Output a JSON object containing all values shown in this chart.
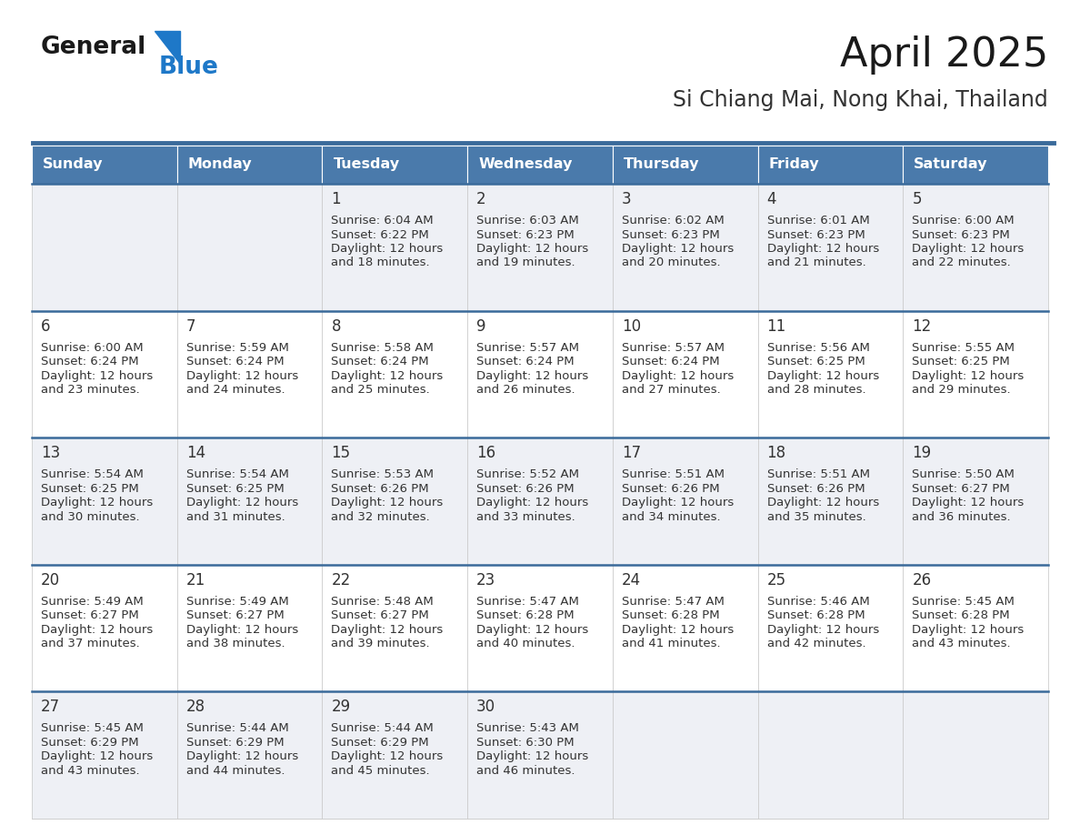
{
  "title": "April 2025",
  "subtitle": "Si Chiang Mai, Nong Khai, Thailand",
  "header_color": "#4a7aab",
  "header_text_color": "#ffffff",
  "row_odd_bg": "#eef0f5",
  "row_even_bg": "#ffffff",
  "text_color": "#333333",
  "border_color": "#3a6a9a",
  "cell_line_color": "#cccccc",
  "days_of_week": [
    "Sunday",
    "Monday",
    "Tuesday",
    "Wednesday",
    "Thursday",
    "Friday",
    "Saturday"
  ],
  "weeks": [
    [
      {
        "day": "",
        "lines": []
      },
      {
        "day": "",
        "lines": []
      },
      {
        "day": "1",
        "lines": [
          "Sunrise: 6:04 AM",
          "Sunset: 6:22 PM",
          "Daylight: 12 hours",
          "and 18 minutes."
        ]
      },
      {
        "day": "2",
        "lines": [
          "Sunrise: 6:03 AM",
          "Sunset: 6:23 PM",
          "Daylight: 12 hours",
          "and 19 minutes."
        ]
      },
      {
        "day": "3",
        "lines": [
          "Sunrise: 6:02 AM",
          "Sunset: 6:23 PM",
          "Daylight: 12 hours",
          "and 20 minutes."
        ]
      },
      {
        "day": "4",
        "lines": [
          "Sunrise: 6:01 AM",
          "Sunset: 6:23 PM",
          "Daylight: 12 hours",
          "and 21 minutes."
        ]
      },
      {
        "day": "5",
        "lines": [
          "Sunrise: 6:00 AM",
          "Sunset: 6:23 PM",
          "Daylight: 12 hours",
          "and 22 minutes."
        ]
      }
    ],
    [
      {
        "day": "6",
        "lines": [
          "Sunrise: 6:00 AM",
          "Sunset: 6:24 PM",
          "Daylight: 12 hours",
          "and 23 minutes."
        ]
      },
      {
        "day": "7",
        "lines": [
          "Sunrise: 5:59 AM",
          "Sunset: 6:24 PM",
          "Daylight: 12 hours",
          "and 24 minutes."
        ]
      },
      {
        "day": "8",
        "lines": [
          "Sunrise: 5:58 AM",
          "Sunset: 6:24 PM",
          "Daylight: 12 hours",
          "and 25 minutes."
        ]
      },
      {
        "day": "9",
        "lines": [
          "Sunrise: 5:57 AM",
          "Sunset: 6:24 PM",
          "Daylight: 12 hours",
          "and 26 minutes."
        ]
      },
      {
        "day": "10",
        "lines": [
          "Sunrise: 5:57 AM",
          "Sunset: 6:24 PM",
          "Daylight: 12 hours",
          "and 27 minutes."
        ]
      },
      {
        "day": "11",
        "lines": [
          "Sunrise: 5:56 AM",
          "Sunset: 6:25 PM",
          "Daylight: 12 hours",
          "and 28 minutes."
        ]
      },
      {
        "day": "12",
        "lines": [
          "Sunrise: 5:55 AM",
          "Sunset: 6:25 PM",
          "Daylight: 12 hours",
          "and 29 minutes."
        ]
      }
    ],
    [
      {
        "day": "13",
        "lines": [
          "Sunrise: 5:54 AM",
          "Sunset: 6:25 PM",
          "Daylight: 12 hours",
          "and 30 minutes."
        ]
      },
      {
        "day": "14",
        "lines": [
          "Sunrise: 5:54 AM",
          "Sunset: 6:25 PM",
          "Daylight: 12 hours",
          "and 31 minutes."
        ]
      },
      {
        "day": "15",
        "lines": [
          "Sunrise: 5:53 AM",
          "Sunset: 6:26 PM",
          "Daylight: 12 hours",
          "and 32 minutes."
        ]
      },
      {
        "day": "16",
        "lines": [
          "Sunrise: 5:52 AM",
          "Sunset: 6:26 PM",
          "Daylight: 12 hours",
          "and 33 minutes."
        ]
      },
      {
        "day": "17",
        "lines": [
          "Sunrise: 5:51 AM",
          "Sunset: 6:26 PM",
          "Daylight: 12 hours",
          "and 34 minutes."
        ]
      },
      {
        "day": "18",
        "lines": [
          "Sunrise: 5:51 AM",
          "Sunset: 6:26 PM",
          "Daylight: 12 hours",
          "and 35 minutes."
        ]
      },
      {
        "day": "19",
        "lines": [
          "Sunrise: 5:50 AM",
          "Sunset: 6:27 PM",
          "Daylight: 12 hours",
          "and 36 minutes."
        ]
      }
    ],
    [
      {
        "day": "20",
        "lines": [
          "Sunrise: 5:49 AM",
          "Sunset: 6:27 PM",
          "Daylight: 12 hours",
          "and 37 minutes."
        ]
      },
      {
        "day": "21",
        "lines": [
          "Sunrise: 5:49 AM",
          "Sunset: 6:27 PM",
          "Daylight: 12 hours",
          "and 38 minutes."
        ]
      },
      {
        "day": "22",
        "lines": [
          "Sunrise: 5:48 AM",
          "Sunset: 6:27 PM",
          "Daylight: 12 hours",
          "and 39 minutes."
        ]
      },
      {
        "day": "23",
        "lines": [
          "Sunrise: 5:47 AM",
          "Sunset: 6:28 PM",
          "Daylight: 12 hours",
          "and 40 minutes."
        ]
      },
      {
        "day": "24",
        "lines": [
          "Sunrise: 5:47 AM",
          "Sunset: 6:28 PM",
          "Daylight: 12 hours",
          "and 41 minutes."
        ]
      },
      {
        "day": "25",
        "lines": [
          "Sunrise: 5:46 AM",
          "Sunset: 6:28 PM",
          "Daylight: 12 hours",
          "and 42 minutes."
        ]
      },
      {
        "day": "26",
        "lines": [
          "Sunrise: 5:45 AM",
          "Sunset: 6:28 PM",
          "Daylight: 12 hours",
          "and 43 minutes."
        ]
      }
    ],
    [
      {
        "day": "27",
        "lines": [
          "Sunrise: 5:45 AM",
          "Sunset: 6:29 PM",
          "Daylight: 12 hours",
          "and 43 minutes."
        ]
      },
      {
        "day": "28",
        "lines": [
          "Sunrise: 5:44 AM",
          "Sunset: 6:29 PM",
          "Daylight: 12 hours",
          "and 44 minutes."
        ]
      },
      {
        "day": "29",
        "lines": [
          "Sunrise: 5:44 AM",
          "Sunset: 6:29 PM",
          "Daylight: 12 hours",
          "and 45 minutes."
        ]
      },
      {
        "day": "30",
        "lines": [
          "Sunrise: 5:43 AM",
          "Sunset: 6:30 PM",
          "Daylight: 12 hours",
          "and 46 minutes."
        ]
      },
      {
        "day": "",
        "lines": []
      },
      {
        "day": "",
        "lines": []
      },
      {
        "day": "",
        "lines": []
      }
    ]
  ],
  "logo_text1": "General",
  "logo_text2": "Blue",
  "logo_color1": "#1a1a1a",
  "logo_color2": "#1e78c8",
  "logo_triangle_color": "#1e78c8",
  "title_color": "#1a1a1a",
  "subtitle_color": "#333333",
  "fig_bg": "#ffffff",
  "header_font_size": 11.5,
  "day_font_size": 12,
  "cell_font_size": 9.5,
  "title_font_size": 32,
  "subtitle_font_size": 17,
  "logo_font_size": 19
}
